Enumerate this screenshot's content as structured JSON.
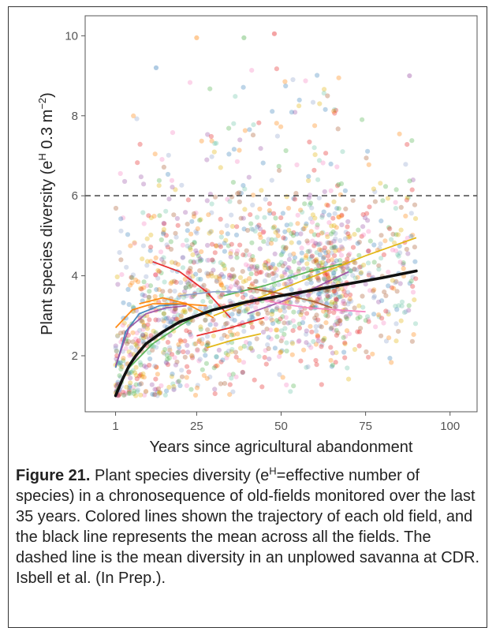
{
  "chart_data": {
    "type": "scatter",
    "xlabel": "Years since agricultural abandonment",
    "ylabel": {
      "prefix": "Plant species diversity (e",
      "sup1": "H",
      "mid": " 0.3 m",
      "sup2": "−2",
      "suffix": ")"
    },
    "xlim": [
      -8,
      108
    ],
    "ylim": [
      0.6,
      10.5
    ],
    "xticks": [
      1,
      25,
      50,
      75,
      100
    ],
    "yticks": [
      2,
      4,
      6,
      8,
      10
    ],
    "grid": false,
    "reference_line": {
      "y": 6,
      "style": "dashed",
      "color": "#444444"
    },
    "point_colors": [
      "#e41a1c",
      "#377eb8",
      "#4daf4a",
      "#984ea3",
      "#ff7f00",
      "#e0b000",
      "#a65628",
      "#f781bf",
      "#66c2a5",
      "#8da0cb"
    ],
    "field_trajectories": [
      {
        "color": "#e41a1c",
        "x": [
          12,
          20,
          28,
          35
        ],
        "y": [
          4.35,
          4.1,
          3.6,
          2.95
        ]
      },
      {
        "color": "#377eb8",
        "x": [
          1,
          4,
          8,
          14,
          22
        ],
        "y": [
          1.7,
          2.6,
          3.05,
          3.25,
          3.3
        ]
      },
      {
        "color": "#4daf4a",
        "x": [
          1,
          5,
          12,
          20,
          27
        ],
        "y": [
          1.1,
          1.7,
          2.3,
          2.75,
          3.1
        ]
      },
      {
        "color": "#984ea3",
        "x": [
          1,
          5,
          10,
          16,
          22
        ],
        "y": [
          1.75,
          2.7,
          3.05,
          3.2,
          3.25
        ]
      },
      {
        "color": "#ff7f00",
        "x": [
          8,
          15,
          22,
          30
        ],
        "y": [
          3.3,
          3.45,
          3.3,
          2.95
        ]
      },
      {
        "color": "#ff7f00",
        "x": [
          1,
          6,
          12,
          20,
          28
        ],
        "y": [
          2.7,
          3.15,
          3.3,
          3.3,
          3.25
        ]
      },
      {
        "color": "#e0b000",
        "x": [
          30,
          45,
          60,
          75,
          90
        ],
        "y": [
          3.0,
          3.5,
          4.0,
          4.5,
          4.95
        ]
      },
      {
        "color": "#4daf4a",
        "x": [
          33,
          45,
          58,
          68
        ],
        "y": [
          3.5,
          3.75,
          4.1,
          4.3
        ]
      },
      {
        "color": "#984ea3",
        "x": [
          40,
          50,
          60,
          70
        ],
        "y": [
          3.05,
          3.35,
          3.7,
          4.1
        ]
      },
      {
        "color": "#a65628",
        "x": [
          40,
          50,
          60,
          65
        ],
        "y": [
          3.7,
          3.55,
          3.35,
          3.2
        ]
      },
      {
        "color": "#f781bf",
        "x": [
          42,
          50,
          58,
          66,
          75
        ],
        "y": [
          3.45,
          3.3,
          3.2,
          3.15,
          3.1
        ]
      },
      {
        "color": "#e41a1c",
        "x": [
          25,
          35,
          45
        ],
        "y": [
          2.5,
          2.7,
          2.95
        ]
      },
      {
        "color": "#e0b000",
        "x": [
          28,
          36,
          44
        ],
        "y": [
          2.2,
          2.4,
          2.55
        ]
      },
      {
        "color": "#8da0cb",
        "x": [
          20,
          30,
          38
        ],
        "y": [
          3.5,
          3.6,
          3.6
        ]
      }
    ],
    "mean_line": {
      "color": "#111111",
      "x": [
        1,
        2,
        3,
        5,
        7,
        10,
        15,
        20,
        25,
        30,
        40,
        50,
        60,
        70,
        80,
        90
      ],
      "y": [
        1.0,
        1.2,
        1.4,
        1.75,
        2.0,
        2.3,
        2.6,
        2.85,
        3.0,
        3.15,
        3.35,
        3.5,
        3.65,
        3.8,
        3.95,
        4.12
      ]
    }
  },
  "caption": {
    "label": "Figure 21.",
    "part1": " Plant species diversity (e",
    "sup": "H",
    "part2": "=effective number of species) in a chronosequence of old-fields monitored over the last 35 years. Colored lines shown the trajectory of each old field, and the black line represents the mean across all the fields. The dashed line is the mean diversity in an unplowed savanna at CDR. Isbell et al. (In Prep.)."
  }
}
